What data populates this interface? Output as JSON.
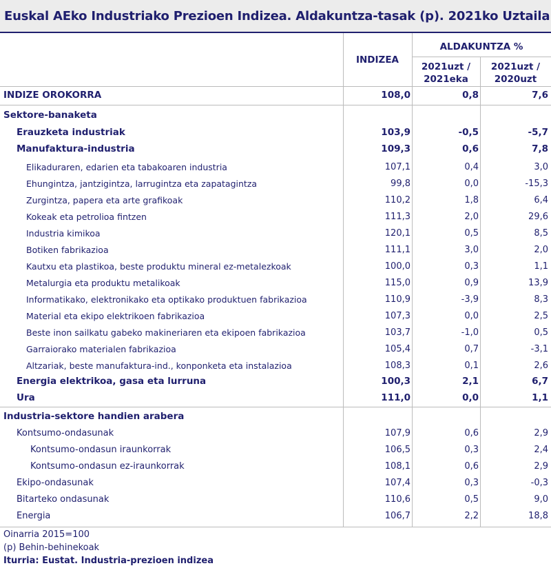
{
  "title": "Euskal AEko Industriako Prezioen Indizea. Aldakuntza-tasak (p). 2021ko Uztaila",
  "header": {
    "indizea": "INDIZEA",
    "aldakuntza": "ALDAKUNTZA %",
    "col2_line1": "2021uzt /",
    "col2_line2": "2021eka",
    "col3_line1": "2021uzt /",
    "col3_line2": "2020uzt"
  },
  "rows": [
    {
      "label": "INDIZE OROKORRA",
      "indizea": "108,0",
      "hilekoa": "0,8",
      "urtekoa": "7,6"
    },
    {
      "label": "Sektore-banaketa",
      "indizea": "",
      "hilekoa": "",
      "urtekoa": ""
    },
    {
      "label": "Erauzketa industriak",
      "indizea": "103,9",
      "hilekoa": "-0,5",
      "urtekoa": "-5,7"
    },
    {
      "label": "Manufaktura-industria",
      "indizea": "109,3",
      "hilekoa": "0,6",
      "urtekoa": "7,8"
    },
    {
      "label": "Elikaduraren, edarien eta tabakoaren industria",
      "indizea": "107,1",
      "hilekoa": "0,4",
      "urtekoa": "3,0"
    },
    {
      "label": "Ehungintza, jantzigintza, larrugintza eta zapatagintza",
      "indizea": "99,8",
      "hilekoa": "0,0",
      "urtekoa": "-15,3"
    },
    {
      "label": "Zurgintza, papera eta arte grafikoak",
      "indizea": "110,2",
      "hilekoa": "1,8",
      "urtekoa": "6,4"
    },
    {
      "label": "Kokeak eta petrolioa fintzen",
      "indizea": "111,3",
      "hilekoa": "2,0",
      "urtekoa": "29,6"
    },
    {
      "label": "Industria kimikoa",
      "indizea": "120,1",
      "hilekoa": "0,5",
      "urtekoa": "8,5"
    },
    {
      "label": "Botiken fabrikazioa",
      "indizea": "111,1",
      "hilekoa": "3,0",
      "urtekoa": "2,0"
    },
    {
      "label": "Kautxu eta plastikoa, beste produktu mineral ez-metalezkoak",
      "indizea": "100,0",
      "hilekoa": "0,3",
      "urtekoa": "1,1"
    },
    {
      "label": "Metalurgia eta produktu metalikoak",
      "indizea": "115,0",
      "hilekoa": "0,9",
      "urtekoa": "13,9"
    },
    {
      "label": "Informatikako, elektronikako eta optikako produktuen fabrikazioa",
      "indizea": "110,9",
      "hilekoa": "-3,9",
      "urtekoa": "8,3"
    },
    {
      "label": "Material eta ekipo elektrikoen fabrikazioa",
      "indizea": "107,3",
      "hilekoa": "0,0",
      "urtekoa": "2,5"
    },
    {
      "label": "Beste inon sailkatu gabeko makineriaren eta ekipoen fabrikazioa",
      "indizea": "103,7",
      "hilekoa": "-1,0",
      "urtekoa": "0,5"
    },
    {
      "label": "Garraiorako materialen fabrikazioa",
      "indizea": "105,4",
      "hilekoa": "0,7",
      "urtekoa": "-3,1"
    },
    {
      "label": "Altzariak, beste manufaktura-ind., konponketa eta instalazioa",
      "indizea": "108,3",
      "hilekoa": "0,1",
      "urtekoa": "2,6"
    },
    {
      "label": "Energia elektrikoa, gasa eta lurruna",
      "indizea": "100,3",
      "hilekoa": "2,1",
      "urtekoa": "6,7"
    },
    {
      "label": "Ura",
      "indizea": "111,0",
      "hilekoa": "0,0",
      "urtekoa": "1,1"
    },
    {
      "label": "Industria-sektore handien arabera",
      "indizea": "",
      "hilekoa": "",
      "urtekoa": ""
    },
    {
      "label": "Kontsumo-ondasunak",
      "indizea": "107,9",
      "hilekoa": "0,6",
      "urtekoa": "2,9"
    },
    {
      "label": "Kontsumo-ondasun iraunkorrak",
      "indizea": "106,5",
      "hilekoa": "0,3",
      "urtekoa": "2,4"
    },
    {
      "label": "Kontsumo-ondasun ez-iraunkorrak",
      "indizea": "108,1",
      "hilekoa": "0,6",
      "urtekoa": "2,9"
    },
    {
      "label": "Ekipo-ondasunak",
      "indizea": "107,4",
      "hilekoa": "0,3",
      "urtekoa": "-0,3"
    },
    {
      "label": "Bitarteko ondasunak",
      "indizea": "110,6",
      "hilekoa": "0,5",
      "urtekoa": "9,0"
    },
    {
      "label": "Energia",
      "indizea": "106,7",
      "hilekoa": "2,2",
      "urtekoa": "18,8"
    }
  ],
  "footnotes": {
    "oinarria": "Oinarria 2015=100",
    "behin": "(p) Behin-behinekoak",
    "iturria": "Iturria: Eustat. Industria-prezioen indizea"
  }
}
